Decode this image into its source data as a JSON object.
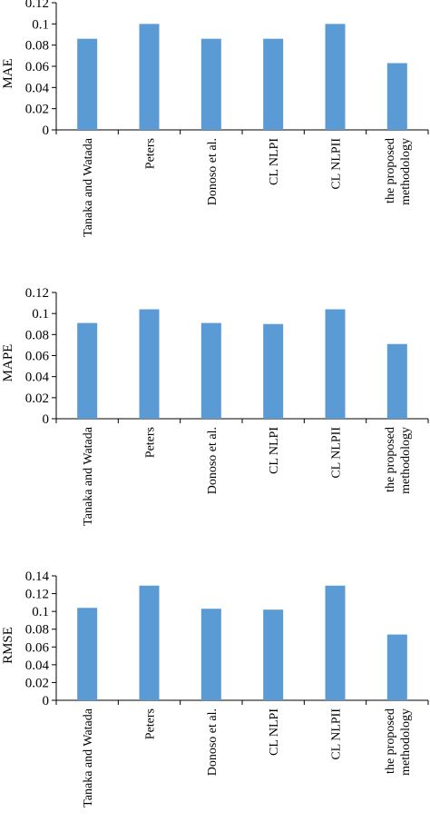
{
  "colors": {
    "bar": "#5b9bd5",
    "axis": "#000000",
    "text": "#000000"
  },
  "chart_data": [
    {
      "type": "bar",
      "ylabel": "MAE",
      "categories": [
        "Tanaka and Watada",
        "Peters",
        "Donoso et al.",
        "CL NLPI",
        "CL NLPII",
        "the proposed methodology"
      ],
      "values": [
        0.086,
        0.1,
        0.086,
        0.086,
        0.1,
        0.063
      ],
      "ylim": [
        0,
        0.12
      ],
      "yticks": [
        "0",
        "0.02",
        "0.04",
        "0.06",
        "0.08",
        "0.1",
        "0.12"
      ],
      "grid": false,
      "legend": "none"
    },
    {
      "type": "bar",
      "ylabel": "MAPE",
      "categories": [
        "Tanaka and Watada",
        "Peters",
        "Donoso et al.",
        "CL NLPI",
        "CL NLPII",
        "the proposed methodology"
      ],
      "values": [
        0.091,
        0.104,
        0.091,
        0.09,
        0.104,
        0.071
      ],
      "ylim": [
        0,
        0.12
      ],
      "yticks": [
        "0",
        "0.02",
        "0.04",
        "0.06",
        "0.08",
        "0.1",
        "0.12"
      ],
      "grid": false,
      "legend": "none"
    },
    {
      "type": "bar",
      "ylabel": "RMSE",
      "categories": [
        "Tanaka and Watada",
        "Peters",
        "Donoso et al.",
        "CL NLPI",
        "CL NLPII",
        "the proposed methodology"
      ],
      "values": [
        0.104,
        0.129,
        0.103,
        0.102,
        0.129,
        0.074
      ],
      "ylim": [
        0,
        0.14
      ],
      "yticks": [
        "0",
        "0.02",
        "0.04",
        "0.06",
        "0.08",
        "0.1",
        "0.12",
        "0.14"
      ],
      "grid": false,
      "legend": "none"
    }
  ]
}
